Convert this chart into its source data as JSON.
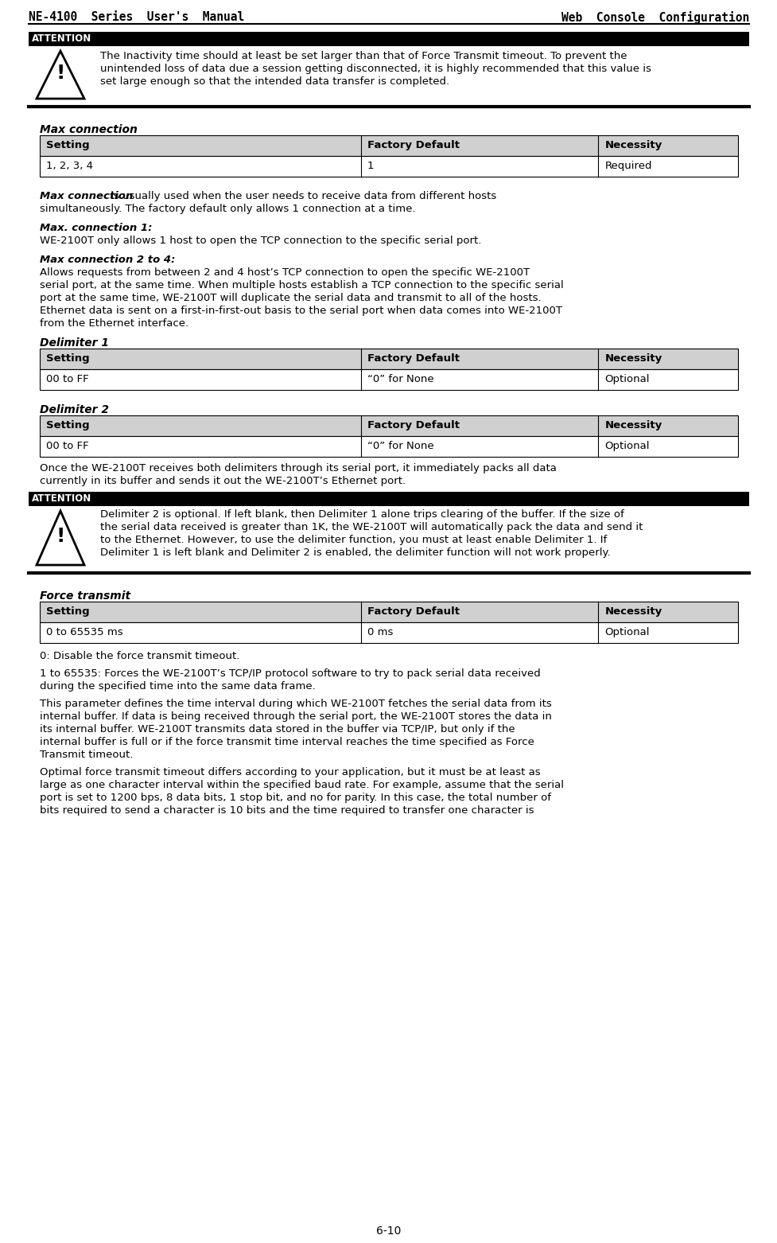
{
  "header_left": "NE-4100  Series  User's  Manual",
  "header_right": "Web  Console  Configuration",
  "footer_center": "6-10",
  "bg_color": "#ffffff",
  "header_line_color": "#000000",
  "attention_box_text": "ATTENTION",
  "attention1_text_line1": "The Inactivity time should at least be set larger than that of Force Transmit timeout. To prevent the",
  "attention1_text_line2": "unintended loss of data due a session getting disconnected, it is highly recommended that this value is",
  "attention1_text_line3": "set large enough so that the intended data transfer is completed.",
  "table_header_bg": "#d0d0d0",
  "table_border_color": "#000000",
  "section1_title": "Max connection",
  "table1_headers": [
    "Setting",
    "Factory Default",
    "Necessity"
  ],
  "table1_row": [
    "1, 2, 3, 4",
    "1",
    "Required"
  ],
  "maxconn_body_bold": "Max connection",
  "maxconn_body_rest_line1": " is usually used when the user needs to receive data from different hosts",
  "maxconn_body_rest_line2": "simultaneously. The factory default only allows 1 connection at a time.",
  "maxconn1_title": "Max. connection 1:",
  "maxconn1_body": "WE-2100T only allows 1 host to open the TCP connection to the specific serial port.",
  "maxconn24_title": "Max connection 2 to 4:",
  "maxconn24_body_line1": "Allows requests from between 2 and 4 host’s TCP connection to open the specific WE-2100T",
  "maxconn24_body_line2": "serial port, at the same time. When multiple hosts establish a TCP connection to the specific serial",
  "maxconn24_body_line3": "port at the same time, WE-2100T will duplicate the serial data and transmit to all of the hosts.",
  "maxconn24_body_line4": "Ethernet data is sent on a first-in-first-out basis to the serial port when data comes into WE-2100T",
  "maxconn24_body_line5": "from the Ethernet interface.",
  "section2_title": "Delimiter 1",
  "table2_headers": [
    "Setting",
    "Factory Default",
    "Necessity"
  ],
  "table2_row": [
    "00 to FF",
    "“0” for None",
    "Optional"
  ],
  "section3_title": "Delimiter 2",
  "table3_headers": [
    "Setting",
    "Factory Default",
    "Necessity"
  ],
  "table3_row": [
    "00 to FF",
    "“0” for None",
    "Optional"
  ],
  "delim_body_line1": "Once the WE-2100T receives both delimiters through its serial port, it immediately packs all data",
  "delim_body_line2": "currently in its buffer and sends it out the WE-2100T’s Ethernet port.",
  "attention2_text_line1": "Delimiter 2 is optional. If left blank, then Delimiter 1 alone trips clearing of the buffer. If the size of",
  "attention2_text_line2": "the serial data received is greater than 1K, the WE-2100T will automatically pack the data and send it",
  "attention2_text_line3": "to the Ethernet. However, to use the delimiter function, you must at least enable Delimiter 1. If",
  "attention2_text_line4": "Delimiter 1 is left blank and Delimiter 2 is enabled, the delimiter function will not work properly.",
  "section4_title": "Force transmit",
  "table4_headers": [
    "Setting",
    "Factory Default",
    "Necessity"
  ],
  "table4_row": [
    "0 to 65535 ms",
    "0 ms",
    "Optional"
  ],
  "force_body1": "0: Disable the force transmit timeout.",
  "force_body2_line1": "1 to 65535: Forces the WE-2100T’s TCP/IP protocol software to try to pack serial data received",
  "force_body2_line2": "during the specified time into the same data frame.",
  "force_body3_line1": "This parameter defines the time interval during which WE-2100T fetches the serial data from its",
  "force_body3_line2": "internal buffer. If data is being received through the serial port, the WE-2100T stores the data in",
  "force_body3_line3": "its internal buffer. WE-2100T transmits data stored in the buffer via TCP/IP, but only if the",
  "force_body3_line4": "internal buffer is full or if the force transmit time interval reaches the time specified as Force",
  "force_body3_line5": "Transmit timeout.",
  "force_body4_line1": "Optimal force transmit timeout differs according to your application, but it must be at least as",
  "force_body4_line2": "large as one character interval within the specified baud rate. For example, assume that the serial",
  "force_body4_line3": "port is set to 1200 bps, 8 data bits, 1 stop bit, and no for parity. In this case, the total number of",
  "force_body4_line4": "bits required to send a character is 10 bits and the time required to transfer one character is"
}
